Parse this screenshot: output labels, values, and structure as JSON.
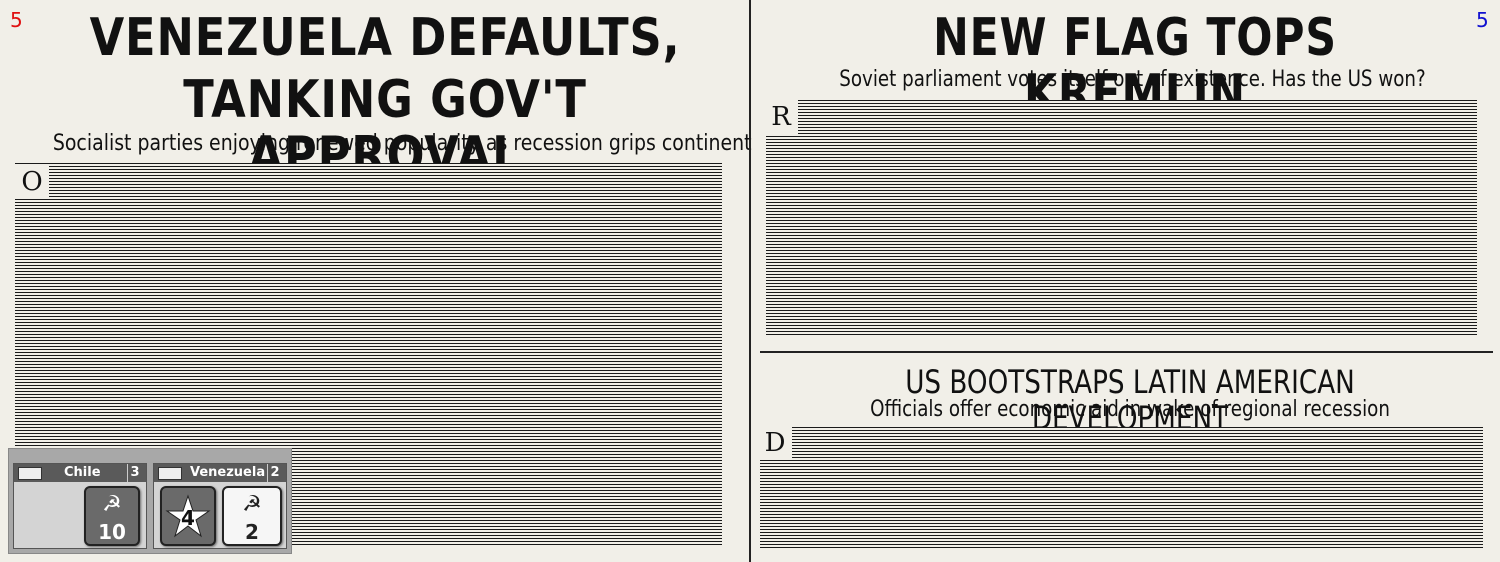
{
  "left_page": {
    "page_number": "5",
    "page_number_color": "#e01010",
    "headline_line1": "VENEZUELA DEFAULTS,",
    "headline_line2": "TANKING GOV'T APPROVAL",
    "subheadline": "Socialist parties enjoying renewed popularity as recession grips continent",
    "dropcap": "O"
  },
  "right_page": {
    "page_number": "5",
    "page_number_color": "#1010d0",
    "headline": "NEW FLAG TOPS KREMLIN",
    "subheadline": "Soviet parliament votes itself out of existence. Has the US won?",
    "dropcap": "R"
  },
  "second_article": {
    "headline": "US BOOTSTRAPS LATIN AMERICAN DEVELOPMENT",
    "subheadline": "Officials offer economic aid in wake of regional recession",
    "dropcap": "D"
  },
  "map_overlay": {
    "countries": [
      {
        "name": "Chile",
        "stability": "3",
        "tokens": [
          {
            "kind": "ussr-influence",
            "icon": "hammer-sickle-icon",
            "value": "10",
            "style": "dark"
          }
        ]
      },
      {
        "name": "Venezuela",
        "stability": "2",
        "tokens": [
          {
            "kind": "us-influence",
            "icon": "star-icon",
            "value": "4",
            "style": "dark"
          },
          {
            "kind": "ussr-influence",
            "icon": "hammer-sickle-icon",
            "value": "2",
            "style": "light"
          }
        ]
      }
    ]
  }
}
